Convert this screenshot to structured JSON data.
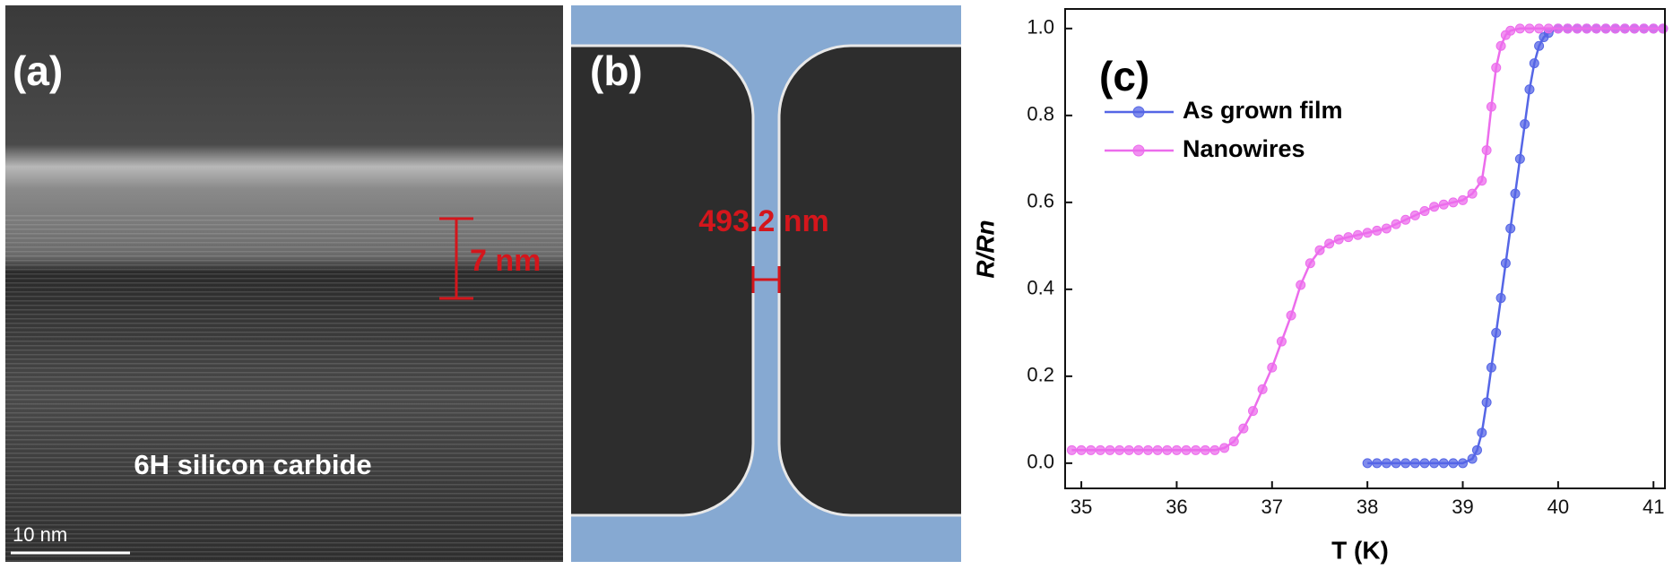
{
  "panel_a": {
    "label": "(a)",
    "thickness_label": "7 nm",
    "caption": "6H silicon carbide",
    "scale_bar": "10 nm"
  },
  "panel_b": {
    "label": "(b)",
    "width_label": "493.2 nm"
  },
  "chart_data": {
    "type": "line",
    "annotation": "(c)",
    "x_label": "T (K)",
    "y_label": "R/Rn",
    "xlim": [
      34.83,
      41.12
    ],
    "ylim": [
      -0.058,
      1.045
    ],
    "xticks": [
      35,
      36,
      37,
      38,
      39,
      40,
      41
    ],
    "yticks": [
      {
        "value": 0,
        "label": "0.0"
      },
      0.2,
      0.4,
      0.6,
      0.8,
      {
        "value": 1,
        "label": "1.0"
      }
    ],
    "legend": "upper left",
    "series": [
      {
        "name": "As grown film",
        "color": "#5566e6",
        "x": [
          38.0,
          38.1,
          38.2,
          38.3,
          38.4,
          38.5,
          38.6,
          38.7,
          38.8,
          38.9,
          39.0,
          39.1,
          39.15,
          39.2,
          39.25,
          39.3,
          39.35,
          39.4,
          39.45,
          39.5,
          39.55,
          39.6,
          39.65,
          39.7,
          39.75,
          39.8,
          39.85,
          39.9,
          40.0,
          40.1,
          40.2,
          40.3,
          40.4,
          40.5,
          40.6,
          40.7,
          40.8,
          40.9,
          41.0,
          41.1
        ],
        "values": [
          0,
          0,
          0,
          0,
          0,
          0,
          0,
          0,
          0,
          0,
          0,
          0.01,
          0.03,
          0.07,
          0.14,
          0.22,
          0.3,
          0.38,
          0.46,
          0.54,
          0.62,
          0.7,
          0.78,
          0.86,
          0.92,
          0.96,
          0.98,
          0.99,
          1,
          1,
          1,
          1,
          1,
          1,
          1,
          1,
          1,
          1,
          1,
          1
        ]
      },
      {
        "name": "Nanowires",
        "color": "#ec6cec",
        "x": [
          34.9,
          35.0,
          35.1,
          35.2,
          35.3,
          35.4,
          35.5,
          35.6,
          35.7,
          35.8,
          35.9,
          36.0,
          36.1,
          36.2,
          36.3,
          36.4,
          36.5,
          36.6,
          36.7,
          36.8,
          36.9,
          37.0,
          37.1,
          37.2,
          37.3,
          37.4,
          37.5,
          37.6,
          37.7,
          37.8,
          37.9,
          38.0,
          38.1,
          38.2,
          38.3,
          38.4,
          38.5,
          38.6,
          38.7,
          38.8,
          38.9,
          39.0,
          39.1,
          39.2,
          39.25,
          39.3,
          39.35,
          39.4,
          39.45,
          39.5,
          39.6,
          39.7,
          39.8,
          39.9,
          40.0,
          40.1,
          40.2,
          40.3,
          40.4,
          40.5,
          40.6,
          40.7,
          40.8,
          40.9,
          41.0,
          41.1
        ],
        "values": [
          0.03,
          0.03,
          0.03,
          0.03,
          0.03,
          0.03,
          0.03,
          0.03,
          0.03,
          0.03,
          0.03,
          0.03,
          0.03,
          0.03,
          0.03,
          0.03,
          0.035,
          0.05,
          0.08,
          0.12,
          0.17,
          0.22,
          0.28,
          0.34,
          0.41,
          0.46,
          0.49,
          0.505,
          0.515,
          0.52,
          0.525,
          0.53,
          0.535,
          0.54,
          0.55,
          0.56,
          0.57,
          0.58,
          0.59,
          0.595,
          0.6,
          0.605,
          0.62,
          0.65,
          0.72,
          0.82,
          0.91,
          0.96,
          0.985,
          0.995,
          1,
          1,
          1,
          1,
          1,
          1,
          1,
          1,
          1,
          1,
          1,
          1,
          1,
          1,
          1,
          1
        ]
      }
    ]
  }
}
